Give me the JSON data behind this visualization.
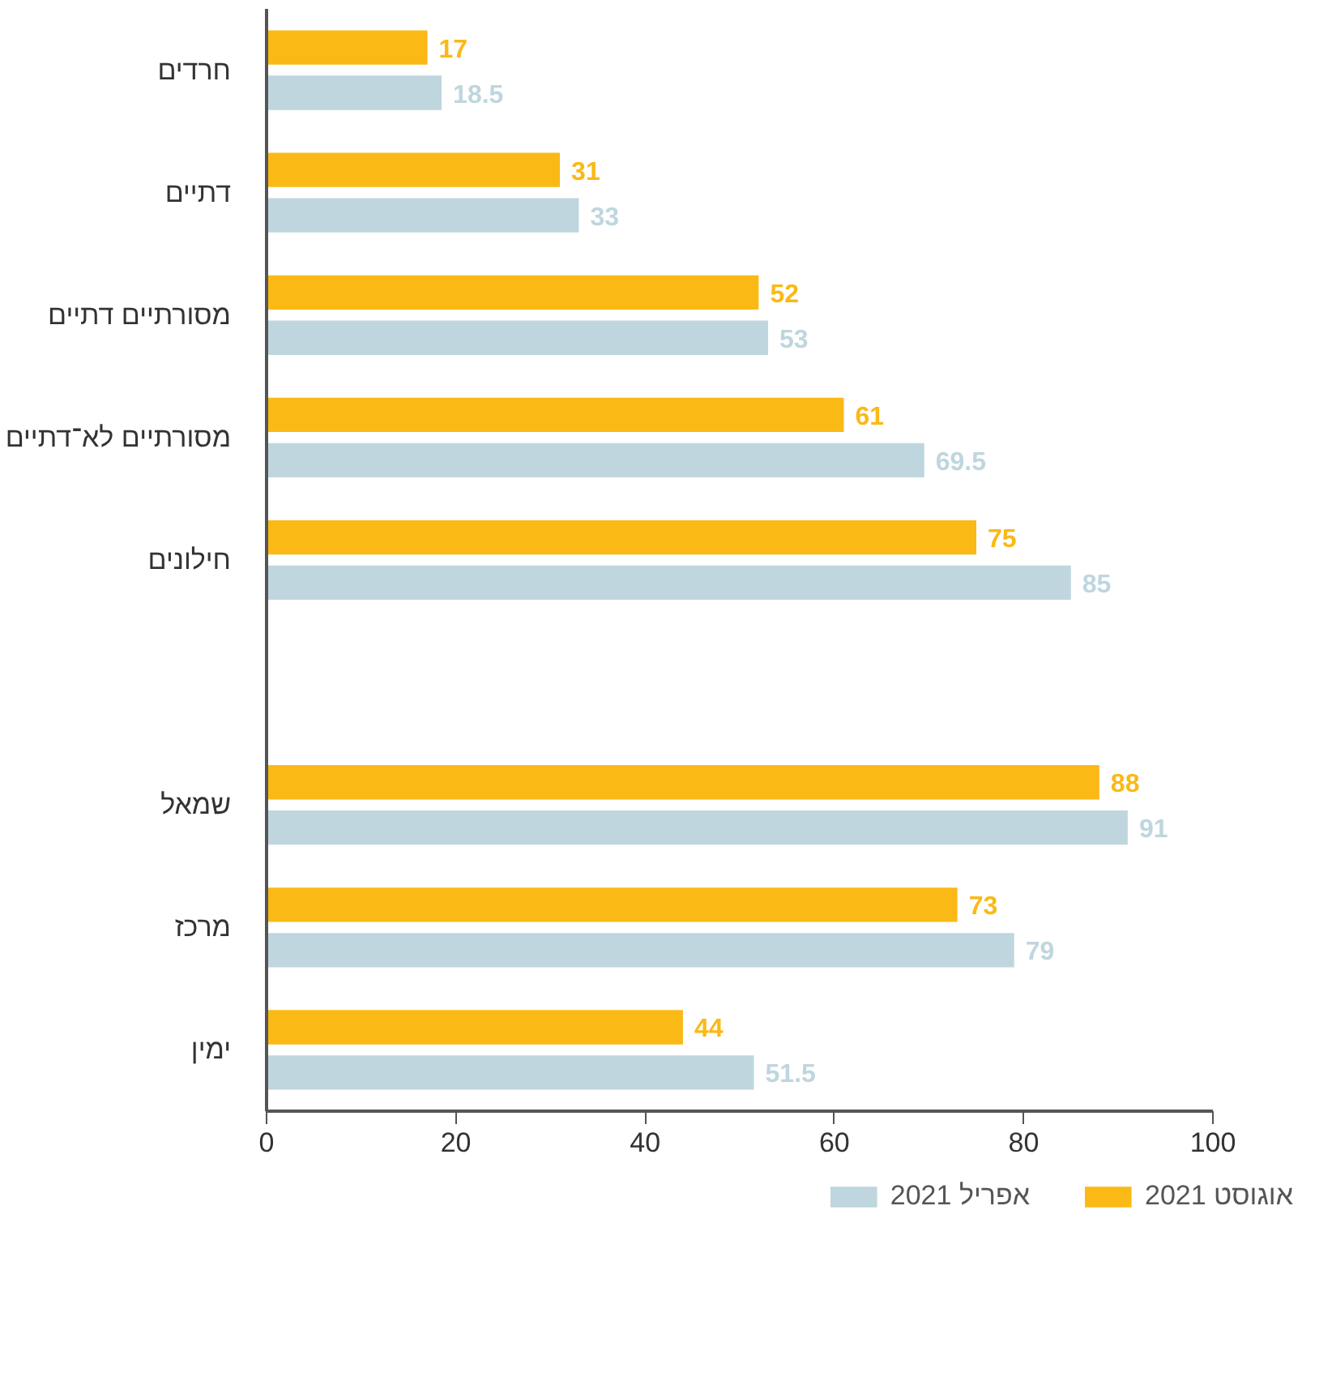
{
  "chart_data": {
    "type": "bar",
    "orientation": "horizontal",
    "categories": [
      "חרדים",
      "דתיים",
      "מסורתיים דתיים",
      "מסורתיים לא־דתיים",
      "חילונים",
      null,
      "שמאל",
      "מרכז",
      "ימין"
    ],
    "series": [
      {
        "name": "אוגוסט 2021",
        "color": "#fbb915",
        "values": [
          17,
          31,
          52,
          61,
          75,
          null,
          88,
          73,
          44
        ]
      },
      {
        "name": "אפריל 2021",
        "color": "#bfd6de",
        "values": [
          18.5,
          33,
          53,
          69.5,
          85,
          null,
          91,
          79,
          51.5
        ]
      }
    ],
    "xlim": [
      0,
      100
    ],
    "xticks": [
      0,
      20,
      40,
      60,
      80,
      100
    ],
    "grid": false,
    "legend": "bottom right",
    "data_labels": true
  }
}
